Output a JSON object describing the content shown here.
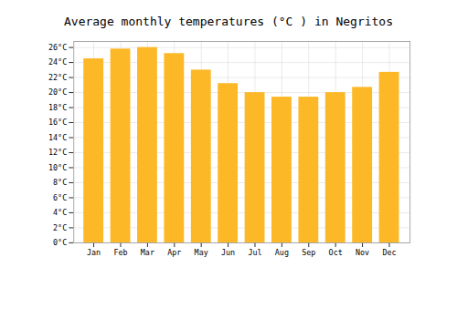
{
  "chart_data": {
    "type": "bar",
    "title": "Average monthly temperatures (°C ) in Negritos",
    "categories": [
      "Jan",
      "Feb",
      "Mar",
      "Apr",
      "May",
      "Jun",
      "Jul",
      "Aug",
      "Sep",
      "Oct",
      "Nov",
      "Dec"
    ],
    "values": [
      24.5,
      25.8,
      26.0,
      25.2,
      23.0,
      21.2,
      20.0,
      19.4,
      19.4,
      20.0,
      20.7,
      22.7
    ],
    "color": "#FDB827",
    "ylim": [
      0,
      26.8
    ],
    "yticks": [
      {
        "value": 0,
        "label": "0°C"
      },
      {
        "value": 2,
        "label": "2°C"
      },
      {
        "value": 4,
        "label": "4°C"
      },
      {
        "value": 6,
        "label": "6°C"
      },
      {
        "value": 8,
        "label": "8°C"
      },
      {
        "value": 10,
        "label": "10°C"
      },
      {
        "value": 12,
        "label": "12°C"
      },
      {
        "value": 14,
        "label": "14°C"
      },
      {
        "value": 16,
        "label": "16°C"
      },
      {
        "value": 18,
        "label": "18°C"
      },
      {
        "value": 20,
        "label": "20°C"
      },
      {
        "value": 22,
        "label": "22°C"
      },
      {
        "value": 24,
        "label": "24°C"
      },
      {
        "value": 26,
        "label": "26°C"
      }
    ],
    "grid": true
  }
}
